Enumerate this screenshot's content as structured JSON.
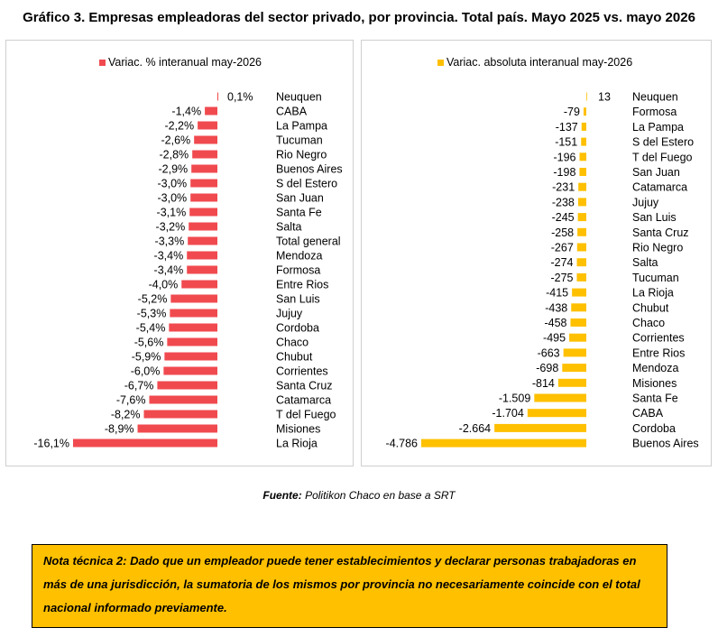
{
  "title": "Gráfico 3. Empresas empleadoras del sector privado, por provincia. Total país. Mayo 2025 vs. mayo 2026",
  "source_label": "Fuente:",
  "source_text": "Politikon Chaco en base a SRT",
  "note": "Nota técnica 2: Dado que un empleador puede tener establecimientos y declarar personas trabajadoras en más de una jurisdicción, la sumatoria de los mismos por provincia no necesariamente coincide con el total nacional informado previamente.",
  "chart_data": [
    {
      "type": "bar",
      "orientation": "horizontal",
      "legend": "Variac. % interanual may-2026",
      "legend_position": "top",
      "color": "#F04A4F",
      "categories": [
        "Neuquen",
        "CABA",
        "La Pampa",
        "Tucuman",
        "Rio Negro",
        "Buenos Aires",
        "S del Estero",
        "San Juan",
        "Santa Fe",
        "Salta",
        "Total general",
        "Mendoza",
        "Formosa",
        "Entre Rios",
        "San Luis",
        "Jujuy",
        "Cordoba",
        "Chaco",
        "Chubut",
        "Corrientes",
        "Santa Cruz",
        "Catamarca",
        "T del Fuego",
        "Misiones",
        "La Rioja"
      ],
      "values": [
        0.1,
        -1.4,
        -2.2,
        -2.6,
        -2.8,
        -2.9,
        -3.0,
        -3.0,
        -3.1,
        -3.2,
        -3.3,
        -3.4,
        -3.4,
        -4.0,
        -5.2,
        -5.3,
        -5.4,
        -5.6,
        -5.9,
        -6.0,
        -6.7,
        -7.6,
        -8.2,
        -8.9,
        -16.1
      ],
      "labels": [
        "0,1%",
        "-1,4%",
        "-2,2%",
        "-2,6%",
        "-2,8%",
        "-2,9%",
        "-3,0%",
        "-3,0%",
        "-3,1%",
        "-3,2%",
        "-3,3%",
        "-3,4%",
        "-3,4%",
        "-4,0%",
        "-5,2%",
        "-5,3%",
        "-5,4%",
        "-5,6%",
        "-5,9%",
        "-6,0%",
        "-6,7%",
        "-7,6%",
        "-8,2%",
        "-8,9%",
        "-16,1%"
      ]
    },
    {
      "type": "bar",
      "orientation": "horizontal",
      "legend": "Variac. absoluta interanual may-2026",
      "legend_position": "top",
      "color": "#FFC000",
      "categories": [
        "Neuquen",
        "Formosa",
        "La Pampa",
        "S del Estero",
        "T del Fuego",
        "San Juan",
        "Catamarca",
        "Jujuy",
        "San Luis",
        "Santa Cruz",
        "Rio Negro",
        "Salta",
        "Tucuman",
        "La Rioja",
        "Chubut",
        "Chaco",
        "Corrientes",
        "Entre Rios",
        "Mendoza",
        "Misiones",
        "Santa Fe",
        "CABA",
        "Cordoba",
        "Buenos Aires"
      ],
      "values": [
        13,
        -79,
        -137,
        -151,
        -196,
        -198,
        -231,
        -238,
        -245,
        -258,
        -267,
        -274,
        -275,
        -415,
        -438,
        -458,
        -495,
        -663,
        -698,
        -814,
        -1509,
        -1704,
        -2664,
        -4786
      ],
      "labels": [
        "13",
        "-79",
        "-137",
        "-151",
        "-196",
        "-198",
        "-231",
        "-238",
        "-245",
        "-258",
        "-267",
        "-274",
        "-275",
        "-415",
        "-438",
        "-458",
        "-495",
        "-663",
        "-698",
        "-814",
        "-1.509",
        "-1.704",
        "-2.664",
        "-4.786"
      ]
    }
  ]
}
